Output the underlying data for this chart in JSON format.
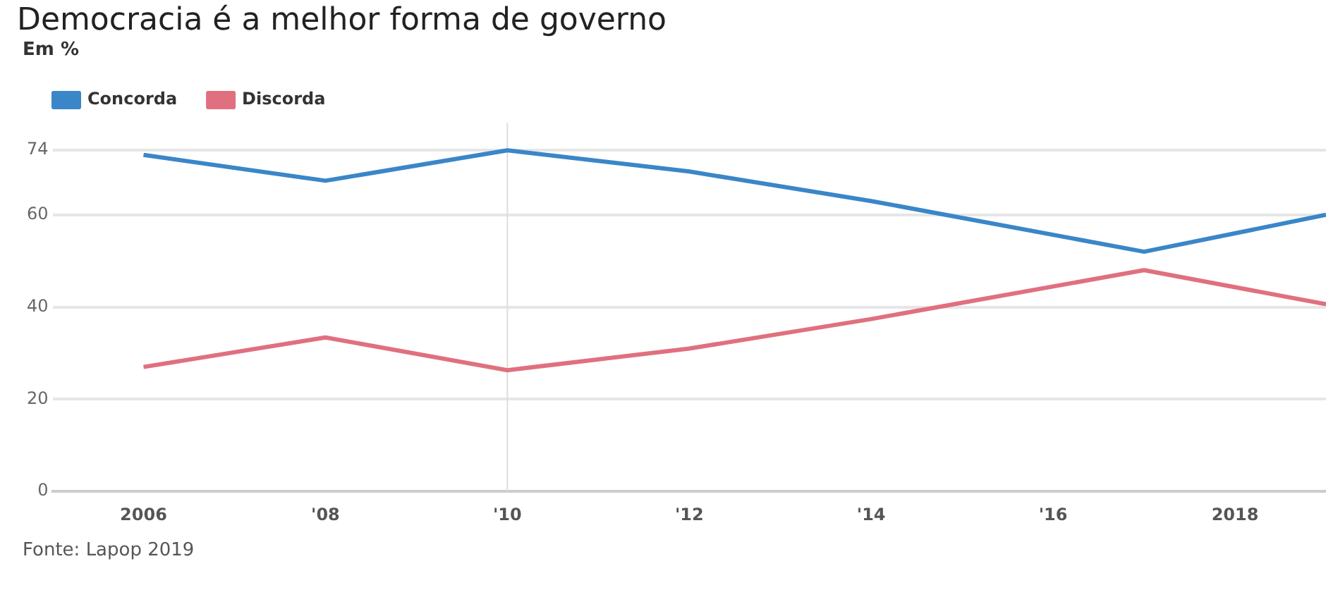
{
  "chart_data": {
    "type": "line",
    "title": "Democracia é a melhor forma de governo",
    "subtitle": "Em %",
    "x": [
      2006,
      2008,
      2010,
      2012,
      2014,
      2017,
      2019
    ],
    "series": [
      {
        "name": "Concorda",
        "color": "#3a86c8",
        "values": [
          73,
          67.4,
          74,
          69.4,
          63,
          52,
          60
        ]
      },
      {
        "name": "Discorda",
        "color": "#e0707f",
        "values": [
          27,
          33.4,
          26.3,
          31,
          37.4,
          48,
          40.6
        ]
      }
    ],
    "xlim": [
      2005,
      2019
    ],
    "xticks": [
      2006,
      {
        "value": 2008,
        "label": "'08"
      },
      {
        "value": 2010,
        "label": "'10"
      },
      {
        "value": 2012,
        "label": "'12"
      },
      {
        "value": 2014,
        "label": "'14"
      },
      {
        "value": 2016,
        "label": "'16"
      },
      2018
    ],
    "ylim": [
      0,
      80
    ],
    "yticks": [
      0,
      20,
      40,
      60,
      74
    ],
    "grid": "y",
    "legend": "top left",
    "marker": "none",
    "line_style": "solid",
    "ref_lines": [
      {
        "axis": "x",
        "value": 2010,
        "label": null,
        "color": "#dddddd"
      }
    ],
    "annotations": [
      "Fonte: Lapop 2019"
    ]
  }
}
